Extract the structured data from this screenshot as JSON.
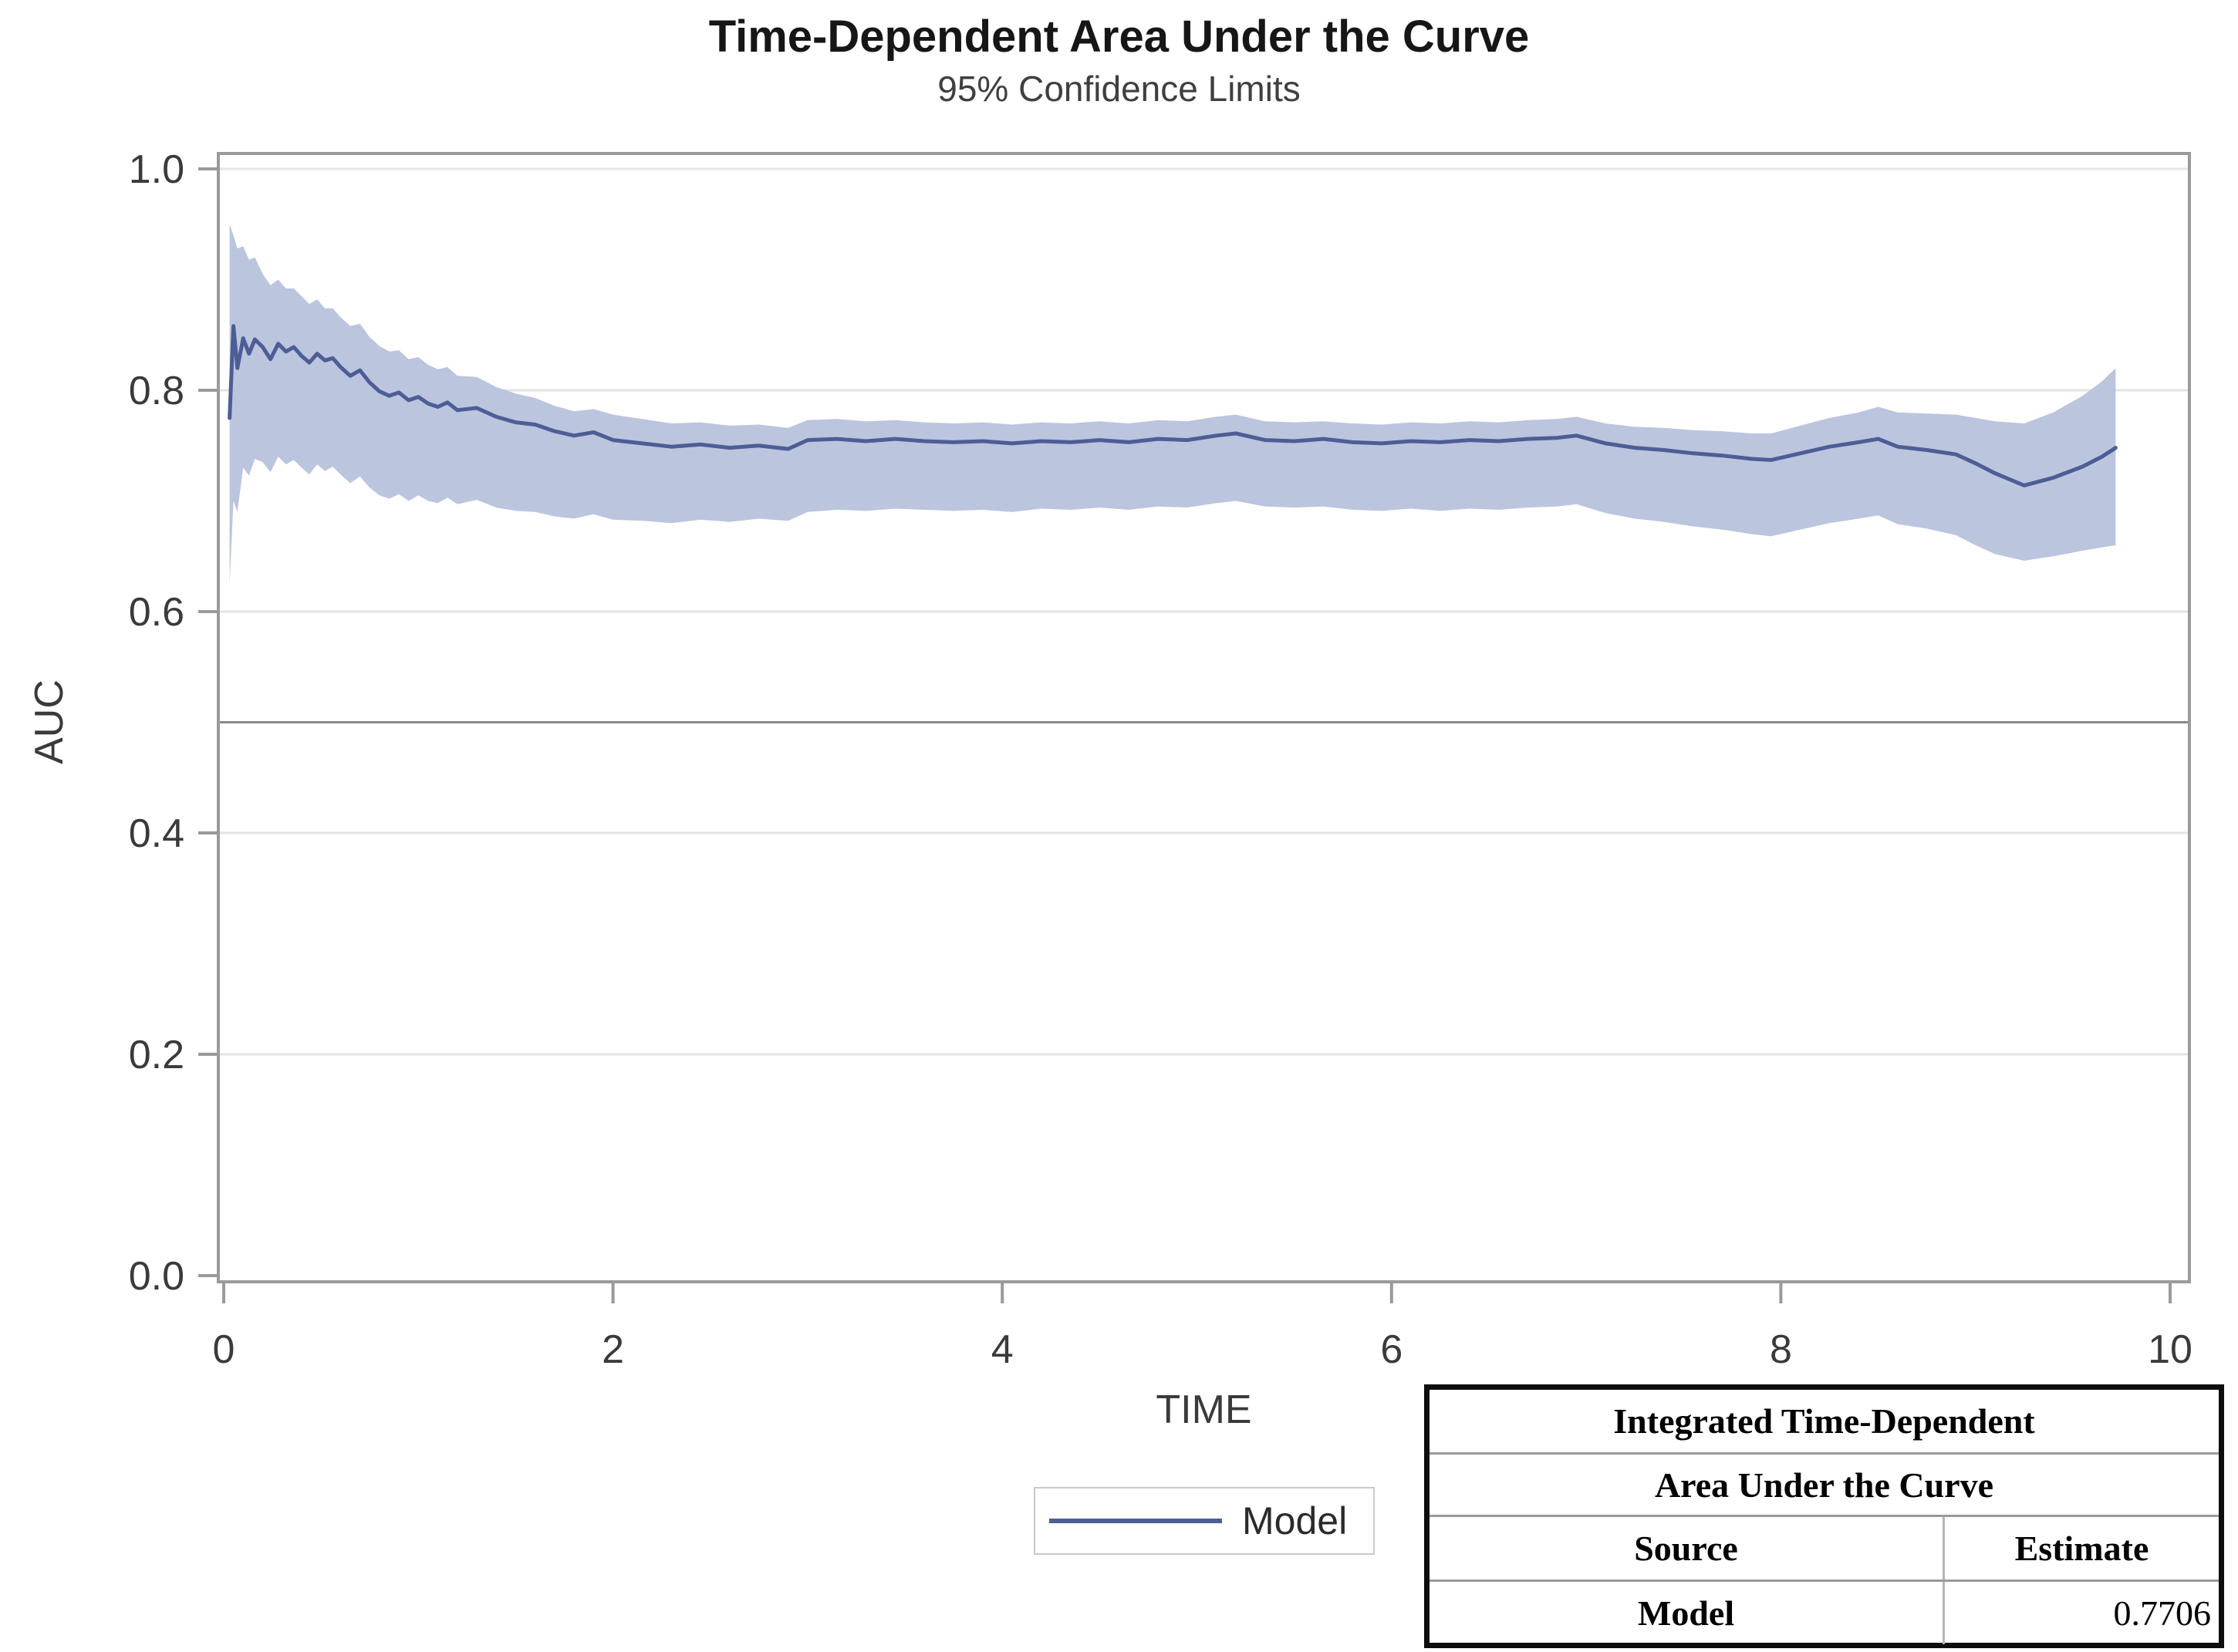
{
  "chart_data": {
    "type": "line",
    "title": "Time-Dependent Area Under the Curve",
    "subtitle": "95% Confidence Limits",
    "xlabel": "TIME",
    "ylabel": "AUC",
    "xlim": [
      0,
      10
    ],
    "ylim": [
      0.0,
      1.0
    ],
    "x_tick_values": [
      0,
      2,
      4,
      6,
      8,
      10
    ],
    "x_tick_labels": [
      "0",
      "2",
      "4",
      "6",
      "8",
      "10"
    ],
    "y_tick_values": [
      1.0,
      0.8,
      0.6,
      0.4,
      0.2,
      0.0
    ],
    "y_tick_labels": [
      "1.0",
      "0.8",
      "0.6",
      "0.4",
      "0.2",
      "0.0"
    ],
    "grid": true,
    "reference_line_y": 0.5,
    "legend_position": "bottom",
    "colors": {
      "line": "#4d5d96",
      "band": "#bcc5de",
      "reference_line": "#8a8a8a",
      "gridline": "#e4e4e4",
      "frame": "#9a9a9a",
      "tick_text": "#3a3a3a"
    },
    "legend": {
      "entries": [
        {
          "label": "Model"
        }
      ]
    },
    "series": [
      {
        "name": "Model",
        "points_format": [
          "time",
          "auc",
          "lower95",
          "upper95"
        ],
        "points": [
          [
            0.03,
            0.775,
            0.625,
            0.95
          ],
          [
            0.05,
            0.858,
            0.7,
            0.94
          ],
          [
            0.07,
            0.82,
            0.69,
            0.928
          ],
          [
            0.1,
            0.847,
            0.73,
            0.93
          ],
          [
            0.13,
            0.833,
            0.723,
            0.918
          ],
          [
            0.16,
            0.846,
            0.738,
            0.92
          ],
          [
            0.2,
            0.839,
            0.735,
            0.905
          ],
          [
            0.24,
            0.828,
            0.726,
            0.895
          ],
          [
            0.28,
            0.842,
            0.74,
            0.9
          ],
          [
            0.32,
            0.835,
            0.733,
            0.892
          ],
          [
            0.36,
            0.839,
            0.737,
            0.892
          ],
          [
            0.4,
            0.831,
            0.73,
            0.885
          ],
          [
            0.44,
            0.825,
            0.724,
            0.878
          ],
          [
            0.48,
            0.833,
            0.733,
            0.882
          ],
          [
            0.52,
            0.827,
            0.727,
            0.874
          ],
          [
            0.56,
            0.829,
            0.731,
            0.874
          ],
          [
            0.6,
            0.821,
            0.724,
            0.866
          ],
          [
            0.65,
            0.813,
            0.716,
            0.858
          ],
          [
            0.7,
            0.818,
            0.722,
            0.86
          ],
          [
            0.75,
            0.807,
            0.712,
            0.848
          ],
          [
            0.8,
            0.799,
            0.705,
            0.84
          ],
          [
            0.85,
            0.795,
            0.702,
            0.835
          ],
          [
            0.9,
            0.798,
            0.706,
            0.836
          ],
          [
            0.95,
            0.791,
            0.7,
            0.828
          ],
          [
            1.0,
            0.794,
            0.705,
            0.83
          ],
          [
            1.05,
            0.788,
            0.7,
            0.823
          ],
          [
            1.1,
            0.785,
            0.698,
            0.819
          ],
          [
            1.15,
            0.789,
            0.703,
            0.821
          ],
          [
            1.2,
            0.782,
            0.697,
            0.813
          ],
          [
            1.3,
            0.784,
            0.701,
            0.812
          ],
          [
            1.4,
            0.776,
            0.694,
            0.803
          ],
          [
            1.5,
            0.771,
            0.691,
            0.797
          ],
          [
            1.6,
            0.769,
            0.69,
            0.793
          ],
          [
            1.7,
            0.763,
            0.686,
            0.786
          ],
          [
            1.8,
            0.759,
            0.684,
            0.781
          ],
          [
            1.9,
            0.762,
            0.688,
            0.783
          ],
          [
            2.0,
            0.755,
            0.683,
            0.778
          ],
          [
            2.15,
            0.752,
            0.682,
            0.774
          ],
          [
            2.3,
            0.749,
            0.68,
            0.77
          ],
          [
            2.45,
            0.751,
            0.683,
            0.771
          ],
          [
            2.6,
            0.748,
            0.681,
            0.768
          ],
          [
            2.75,
            0.75,
            0.684,
            0.769
          ],
          [
            2.9,
            0.747,
            0.682,
            0.766
          ],
          [
            3.0,
            0.755,
            0.69,
            0.773
          ],
          [
            3.15,
            0.756,
            0.692,
            0.774
          ],
          [
            3.3,
            0.754,
            0.691,
            0.772
          ],
          [
            3.45,
            0.756,
            0.693,
            0.773
          ],
          [
            3.6,
            0.754,
            0.692,
            0.771
          ],
          [
            3.75,
            0.753,
            0.691,
            0.77
          ],
          [
            3.9,
            0.754,
            0.692,
            0.771
          ],
          [
            4.05,
            0.752,
            0.69,
            0.769
          ],
          [
            4.2,
            0.754,
            0.693,
            0.771
          ],
          [
            4.35,
            0.753,
            0.692,
            0.77
          ],
          [
            4.5,
            0.755,
            0.694,
            0.772
          ],
          [
            4.65,
            0.753,
            0.692,
            0.77
          ],
          [
            4.8,
            0.756,
            0.695,
            0.773
          ],
          [
            4.95,
            0.755,
            0.694,
            0.772
          ],
          [
            5.1,
            0.759,
            0.698,
            0.776
          ],
          [
            5.2,
            0.761,
            0.7,
            0.778
          ],
          [
            5.35,
            0.755,
            0.695,
            0.772
          ],
          [
            5.5,
            0.754,
            0.694,
            0.771
          ],
          [
            5.65,
            0.756,
            0.695,
            0.772
          ],
          [
            5.8,
            0.753,
            0.692,
            0.77
          ],
          [
            5.95,
            0.752,
            0.691,
            0.769
          ],
          [
            6.1,
            0.754,
            0.693,
            0.771
          ],
          [
            6.25,
            0.753,
            0.691,
            0.77
          ],
          [
            6.4,
            0.755,
            0.693,
            0.772
          ],
          [
            6.55,
            0.754,
            0.692,
            0.771
          ],
          [
            6.7,
            0.756,
            0.694,
            0.773
          ],
          [
            6.85,
            0.757,
            0.695,
            0.774
          ],
          [
            6.95,
            0.759,
            0.697,
            0.776
          ],
          [
            7.1,
            0.752,
            0.689,
            0.77
          ],
          [
            7.25,
            0.748,
            0.684,
            0.767
          ],
          [
            7.4,
            0.746,
            0.681,
            0.766
          ],
          [
            7.55,
            0.743,
            0.677,
            0.764
          ],
          [
            7.7,
            0.741,
            0.674,
            0.763
          ],
          [
            7.85,
            0.738,
            0.67,
            0.761
          ],
          [
            7.95,
            0.737,
            0.668,
            0.761
          ],
          [
            8.1,
            0.743,
            0.674,
            0.768
          ],
          [
            8.25,
            0.749,
            0.68,
            0.775
          ],
          [
            8.4,
            0.753,
            0.684,
            0.78
          ],
          [
            8.5,
            0.756,
            0.687,
            0.785
          ],
          [
            8.6,
            0.749,
            0.679,
            0.78
          ],
          [
            8.75,
            0.746,
            0.675,
            0.779
          ],
          [
            8.9,
            0.742,
            0.669,
            0.778
          ],
          [
            9.0,
            0.734,
            0.66,
            0.775
          ],
          [
            9.1,
            0.725,
            0.652,
            0.772
          ],
          [
            9.25,
            0.714,
            0.646,
            0.77
          ],
          [
            9.4,
            0.721,
            0.65,
            0.78
          ],
          [
            9.55,
            0.731,
            0.655,
            0.795
          ],
          [
            9.65,
            0.74,
            0.658,
            0.808
          ],
          [
            9.72,
            0.748,
            0.66,
            0.82
          ]
        ]
      }
    ]
  },
  "inset_table": {
    "title_line1": "Integrated Time-Dependent",
    "title_line2": "Area Under the Curve",
    "col_source": "Source",
    "col_estimate": "Estimate",
    "row_source": "Model",
    "row_estimate": "0.7706"
  }
}
